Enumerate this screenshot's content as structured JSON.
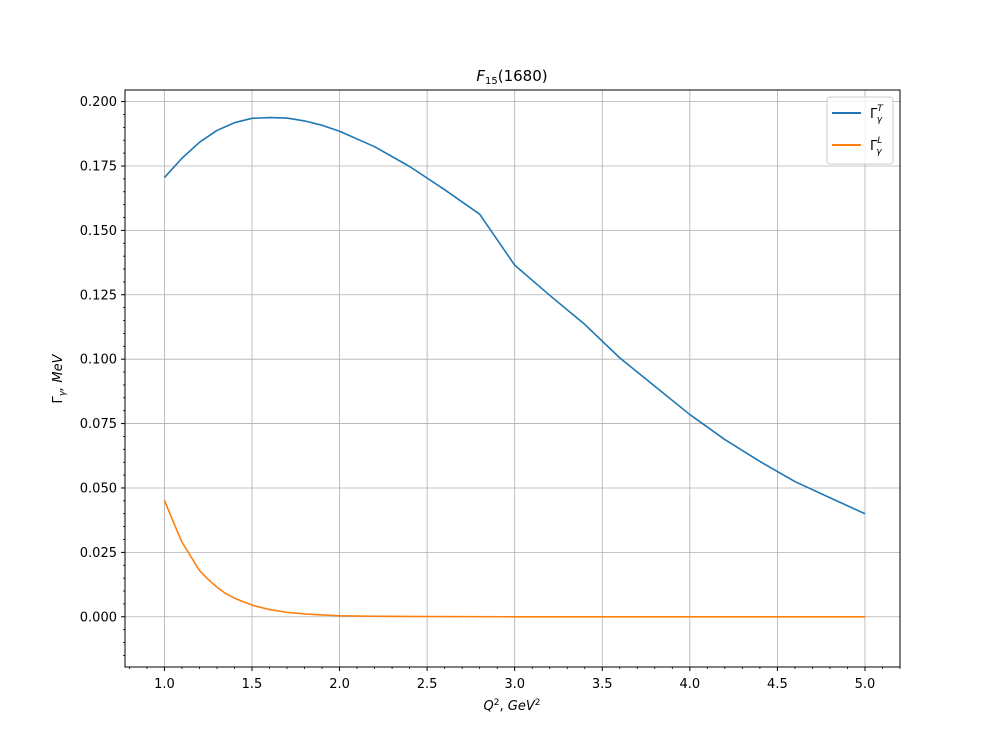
{
  "chart_data": {
    "type": "line",
    "title": {
      "base": "F",
      "sub": "15",
      "tail": "(1680)"
    },
    "xlabel": {
      "q": "Q",
      "qsup": "2",
      "sep": ", ",
      "gev": "GeV",
      "gevsup": "2"
    },
    "ylabel": {
      "gamma": "Γ",
      "sub": "γ",
      "tail": ", MeV"
    },
    "xlim": [
      0.775,
      5.2
    ],
    "ylim": [
      -0.0195,
      0.2045
    ],
    "xticks": [
      1.0,
      1.5,
      2.0,
      2.5,
      3.0,
      3.5,
      4.0,
      4.5,
      5.0
    ],
    "xtick_labels": [
      "1.0",
      "1.5",
      "2.0",
      "2.5",
      "3.0",
      "3.5",
      "4.0",
      "4.5",
      "5.0"
    ],
    "yticks": [
      0.0,
      0.025,
      0.05,
      0.075,
      0.1,
      0.125,
      0.15,
      0.175,
      0.2
    ],
    "ytick_labels": [
      "0.000",
      "0.025",
      "0.050",
      "0.075",
      "0.100",
      "0.125",
      "0.150",
      "0.175",
      "0.200"
    ],
    "grid": true,
    "legend_position": "top-right",
    "series": [
      {
        "name": {
          "base": "Γ",
          "sup": "T",
          "sub": "γ"
        },
        "color": "#1f77b4",
        "x": [
          1.0,
          1.1,
          1.2,
          1.3,
          1.4,
          1.5,
          1.6,
          1.7,
          1.8,
          1.9,
          2.0,
          2.2,
          2.4,
          2.6,
          2.8,
          3.0,
          3.2,
          3.4,
          3.6,
          3.8,
          4.0,
          4.2,
          4.4,
          4.6,
          4.8,
          5.0
        ],
        "y": [
          0.1705,
          0.178,
          0.1842,
          0.1888,
          0.1918,
          0.1935,
          0.1938,
          0.1936,
          0.1925,
          0.1908,
          0.1885,
          0.1825,
          0.1748,
          0.1658,
          0.1563,
          0.1365,
          0.1248,
          0.1135,
          0.1005,
          0.0895,
          0.0785,
          0.0688,
          0.0603,
          0.0525,
          0.0462,
          0.04
        ]
      },
      {
        "name": {
          "base": "Γ",
          "sup": "L",
          "sub": "γ"
        },
        "color": "#ff7f0e",
        "x": [
          1.0,
          1.05,
          1.1,
          1.15,
          1.2,
          1.25,
          1.3,
          1.35,
          1.4,
          1.5,
          1.6,
          1.7,
          1.8,
          1.9,
          2.0,
          2.2,
          2.5,
          3.0,
          3.5,
          4.0,
          4.5,
          5.0
        ],
        "y": [
          0.0452,
          0.037,
          0.029,
          0.0235,
          0.018,
          0.0145,
          0.0115,
          0.009,
          0.0072,
          0.0045,
          0.0028,
          0.0017,
          0.0011,
          0.0007,
          0.0004,
          0.0002,
          0.0001,
          0.0,
          0.0,
          0.0,
          0.0,
          0.0
        ]
      }
    ]
  }
}
